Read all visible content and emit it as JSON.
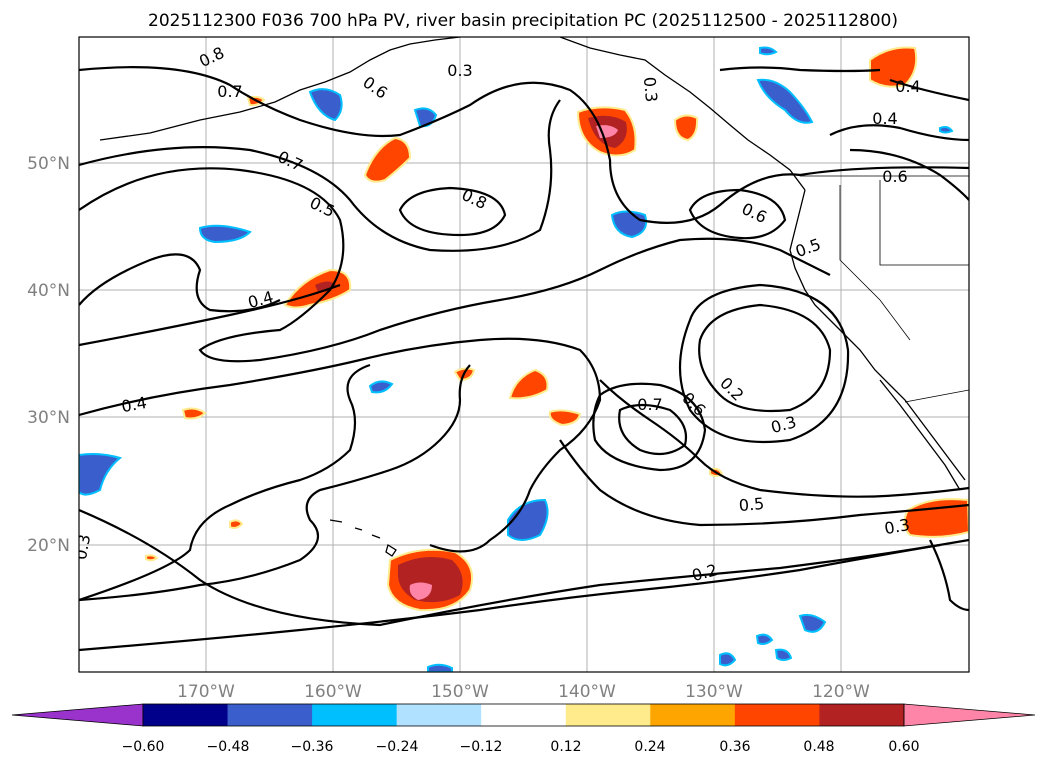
{
  "title": "2025112300 F036 700 hPa PV, river basin precipitation PC (2025112500 - 2025112800)",
  "map": {
    "lat_ticks": [
      "50°N",
      "40°N",
      "30°N",
      "20°N"
    ],
    "lon_ticks": [
      "170°W",
      "160°W",
      "150°W",
      "140°W",
      "130°W",
      "120°W"
    ]
  },
  "colorbar": {
    "tick_labels": [
      "−0.60",
      "−0.48",
      "−0.36",
      "−0.24",
      "−0.12",
      "0.12",
      "0.24",
      "0.36",
      "0.48",
      "0.60"
    ],
    "colors": [
      "#9933cc",
      "#00008b",
      "#3a5fcd",
      "#00bfff",
      "#b0e2ff",
      "#ffffff",
      "#ffeb8c",
      "#ffa500",
      "#ff4500",
      "#b22222",
      "#ff85a8"
    ]
  },
  "contour_labels": [
    "0.8",
    "0.7",
    "0.6",
    "0.3",
    "0.3",
    "0.7",
    "0.5",
    "0.8",
    "0.4",
    "0.6",
    "0.4",
    "0.6",
    "0.5",
    "0.4",
    "0.4",
    "0.2",
    "0.7",
    "0.6",
    "0.3",
    "0.5",
    "0.3",
    "0.2",
    "0.3"
  ],
  "colors": {
    "grid": "#b0b0b0",
    "contour": "#000000",
    "positive_dark": "#b22222",
    "positive_mid": "#ff4500",
    "positive_light": "#ffa500",
    "positive_edge": "#ffeb8c",
    "positive_peak": "#ff85a8",
    "negative_mid": "#3a5fcd",
    "negative_light": "#00bfff"
  }
}
